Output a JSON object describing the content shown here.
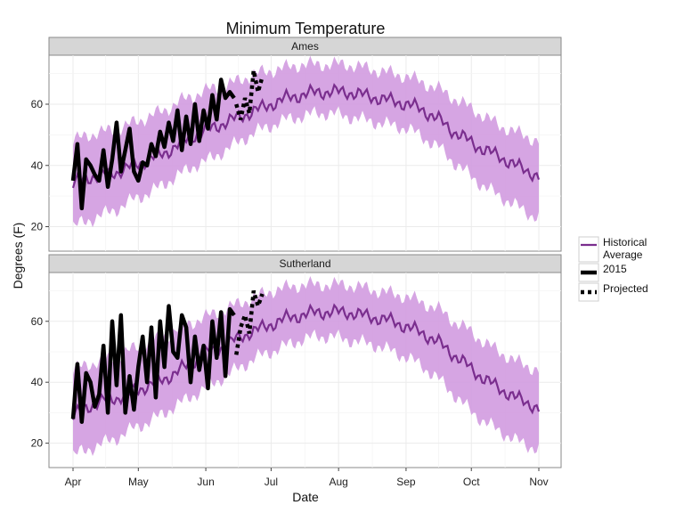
{
  "chart_data": {
    "type": "line",
    "title": "Minimum Temperature",
    "xlabel": "Date",
    "ylabel": "Degrees (F)",
    "x_axis": {
      "start": "Apr 1",
      "end": "Nov 1",
      "tick_labels": [
        "Apr",
        "May",
        "Jun",
        "Jul",
        "Aug",
        "Sep",
        "Oct",
        "Nov"
      ]
    },
    "ylim": [
      12,
      76
    ],
    "y_ticks": [
      20,
      40,
      60
    ],
    "grid": true,
    "legend_position": "right",
    "colors": {
      "historical_line": "#7a2e8e",
      "historical_band": "#d19be0",
      "observed": "#000000",
      "projected": "#000000",
      "panel_background": "#ffffff",
      "strip_background": "#d6d6d6",
      "grid": "#ebebeb"
    },
    "legend": [
      {
        "label_lines": [
          "Historical",
          "Average"
        ],
        "style": "historical"
      },
      {
        "label_lines": [
          "2015"
        ],
        "style": "observed"
      },
      {
        "label_lines": [
          "Projected"
        ],
        "style": "projected"
      }
    ],
    "panels": [
      {
        "name": "Ames",
        "historical_average": {
          "dates": [
            "Apr 1",
            "Apr 8",
            "Apr 15",
            "Apr 22",
            "Apr 29",
            "May 6",
            "May 13",
            "May 20",
            "May 27",
            "Jun 3",
            "Jun 10",
            "Jun 17",
            "Jun 24",
            "Jul 1",
            "Jul 8",
            "Jul 15",
            "Jul 22",
            "Jul 29",
            "Aug 5",
            "Aug 12",
            "Aug 19",
            "Aug 26",
            "Sep 2",
            "Sep 9",
            "Sep 16",
            "Sep 23",
            "Sep 30",
            "Oct 7",
            "Oct 14",
            "Oct 21",
            "Oct 28",
            "Nov 1"
          ],
          "mean": [
            34,
            36,
            37,
            38,
            40,
            42,
            44,
            47,
            50,
            52,
            54,
            56,
            58,
            60,
            62,
            63,
            64,
            64,
            64,
            63,
            62,
            61,
            60,
            58,
            55,
            51,
            48,
            45,
            43,
            40,
            38,
            36
          ],
          "low": [
            20,
            22,
            24,
            26,
            29,
            31,
            34,
            37,
            40,
            42,
            45,
            48,
            51,
            53,
            55,
            56,
            57,
            57,
            56,
            55,
            54,
            53,
            52,
            49,
            46,
            41,
            37,
            33,
            30,
            27,
            24,
            23
          ],
          "high": [
            48,
            50,
            51,
            52,
            54,
            56,
            58,
            61,
            63,
            65,
            66,
            68,
            70,
            71,
            72,
            73,
            73,
            73,
            73,
            72,
            71,
            70,
            69,
            67,
            65,
            62,
            59,
            56,
            53,
            51,
            49,
            48
          ]
        },
        "observed_2015": {
          "dates": [
            "Apr 1",
            "Apr 3",
            "Apr 5",
            "Apr 7",
            "Apr 9",
            "Apr 11",
            "Apr 13",
            "Apr 15",
            "Apr 17",
            "Apr 19",
            "Apr 21",
            "Apr 23",
            "Apr 25",
            "Apr 27",
            "Apr 29",
            "May 1",
            "May 3",
            "May 5",
            "May 7",
            "May 9",
            "May 11",
            "May 13",
            "May 15",
            "May 17",
            "May 19",
            "May 21",
            "May 23",
            "May 25",
            "May 27",
            "May 29",
            "May 31",
            "Jun 2",
            "Jun 4",
            "Jun 6",
            "Jun 8",
            "Jun 10",
            "Jun 12",
            "Jun 14"
          ],
          "values": [
            35,
            47,
            26,
            42,
            40,
            37,
            35,
            45,
            33,
            42,
            54,
            38,
            45,
            52,
            38,
            35,
            41,
            40,
            47,
            43,
            51,
            46,
            54,
            48,
            58,
            45,
            56,
            47,
            60,
            48,
            58,
            52,
            63,
            55,
            68,
            62,
            64,
            62
          ]
        },
        "projected": {
          "dates": [
            "Jun 15",
            "Jun 17",
            "Jun 19",
            "Jun 21",
            "Jun 23",
            "Jun 25",
            "Jun 27"
          ],
          "values": [
            60,
            55,
            62,
            57,
            71,
            64,
            69
          ]
        }
      },
      {
        "name": "Sutherland",
        "historical_average": {
          "dates": [
            "Apr 1",
            "Apr 8",
            "Apr 15",
            "Apr 22",
            "Apr 29",
            "May 6",
            "May 13",
            "May 20",
            "May 27",
            "Jun 3",
            "Jun 10",
            "Jun 17",
            "Jun 24",
            "Jul 1",
            "Jul 8",
            "Jul 15",
            "Jul 22",
            "Jul 29",
            "Aug 5",
            "Aug 12",
            "Aug 19",
            "Aug 26",
            "Sep 2",
            "Sep 9",
            "Sep 16",
            "Sep 23",
            "Sep 30",
            "Oct 7",
            "Oct 14",
            "Oct 21",
            "Oct 28",
            "Nov 1"
          ],
          "mean": [
            29,
            32,
            34,
            35,
            37,
            39,
            41,
            44,
            47,
            50,
            52,
            55,
            57,
            59,
            61,
            62,
            63,
            63,
            63,
            62,
            61,
            60,
            58,
            56,
            53,
            49,
            45,
            41,
            38,
            35,
            33,
            31
          ],
          "low": [
            16,
            18,
            20,
            22,
            25,
            27,
            30,
            33,
            36,
            39,
            42,
            45,
            48,
            50,
            52,
            54,
            55,
            55,
            54,
            53,
            52,
            50,
            48,
            45,
            41,
            36,
            31,
            27,
            24,
            21,
            19,
            18
          ],
          "high": [
            44,
            46,
            47,
            49,
            51,
            53,
            55,
            58,
            60,
            62,
            64,
            66,
            68,
            70,
            71,
            72,
            72,
            72,
            72,
            71,
            70,
            69,
            68,
            66,
            64,
            60,
            57,
            53,
            50,
            47,
            45,
            44
          ]
        },
        "observed_2015": {
          "dates": [
            "Apr 1",
            "Apr 3",
            "Apr 5",
            "Apr 7",
            "Apr 9",
            "Apr 11",
            "Apr 13",
            "Apr 15",
            "Apr 17",
            "Apr 19",
            "Apr 21",
            "Apr 23",
            "Apr 25",
            "Apr 27",
            "Apr 29",
            "May 1",
            "May 3",
            "May 5",
            "May 7",
            "May 9",
            "May 11",
            "May 13",
            "May 15",
            "May 17",
            "May 19",
            "May 21",
            "May 23",
            "May 25",
            "May 27",
            "May 29",
            "May 31",
            "Jun 2",
            "Jun 4",
            "Jun 6",
            "Jun 8",
            "Jun 10",
            "Jun 12",
            "Jun 14"
          ],
          "values": [
            28,
            46,
            27,
            43,
            40,
            32,
            36,
            52,
            30,
            60,
            39,
            62,
            30,
            42,
            31,
            45,
            55,
            40,
            58,
            35,
            60,
            45,
            65,
            50,
            48,
            62,
            58,
            40,
            55,
            44,
            52,
            38,
            60,
            48,
            63,
            42,
            64,
            62
          ]
        },
        "projected": {
          "dates": [
            "Jun 15",
            "Jun 17",
            "Jun 19",
            "Jun 21",
            "Jun 23",
            "Jun 25",
            "Jun 27"
          ],
          "values": [
            49,
            58,
            62,
            56,
            70,
            65,
            69
          ]
        }
      }
    ]
  }
}
